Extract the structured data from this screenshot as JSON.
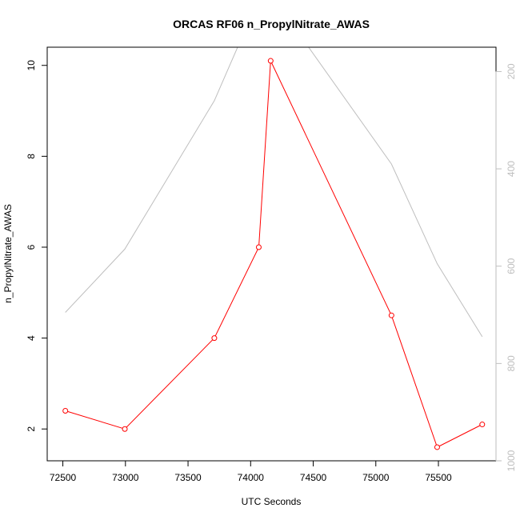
{
  "chart_data": {
    "type": "line",
    "title": "ORCAS RF06 n_PropylNitrate_AWAS",
    "xlabel": "UTC Seconds",
    "ylabel": "n_PropylNitrate_AWAS",
    "xlim": [
      72375,
      75960
    ],
    "ylim": [
      1.3,
      10.4
    ],
    "y2lim": [
      1000,
      150
    ],
    "x_ticks": [
      72500,
      73000,
      73500,
      74000,
      74500,
      75000,
      75500
    ],
    "y_ticks": [
      2,
      4,
      6,
      8,
      10
    ],
    "y2_ticks": [
      200,
      400,
      600,
      800,
      1000
    ],
    "grid": false,
    "legend": "none",
    "series": [
      {
        "axis": "left",
        "color": "#ff0000",
        "marker": "open-circle",
        "x": [
          72520,
          72995,
          73710,
          74065,
          74160,
          75125,
          75490,
          75850
        ],
        "y": [
          2.4,
          2.0,
          4.0,
          6.0,
          10.1,
          4.5,
          1.6,
          2.1
        ]
      },
      {
        "axis": "right",
        "color": "#bebebe",
        "marker": "none",
        "x": [
          72520,
          72995,
          73710,
          74065,
          74160,
          75125,
          75490,
          75850
        ],
        "y": [
          695,
          565,
          260,
          50,
          40,
          390,
          595,
          745
        ]
      }
    ]
  }
}
